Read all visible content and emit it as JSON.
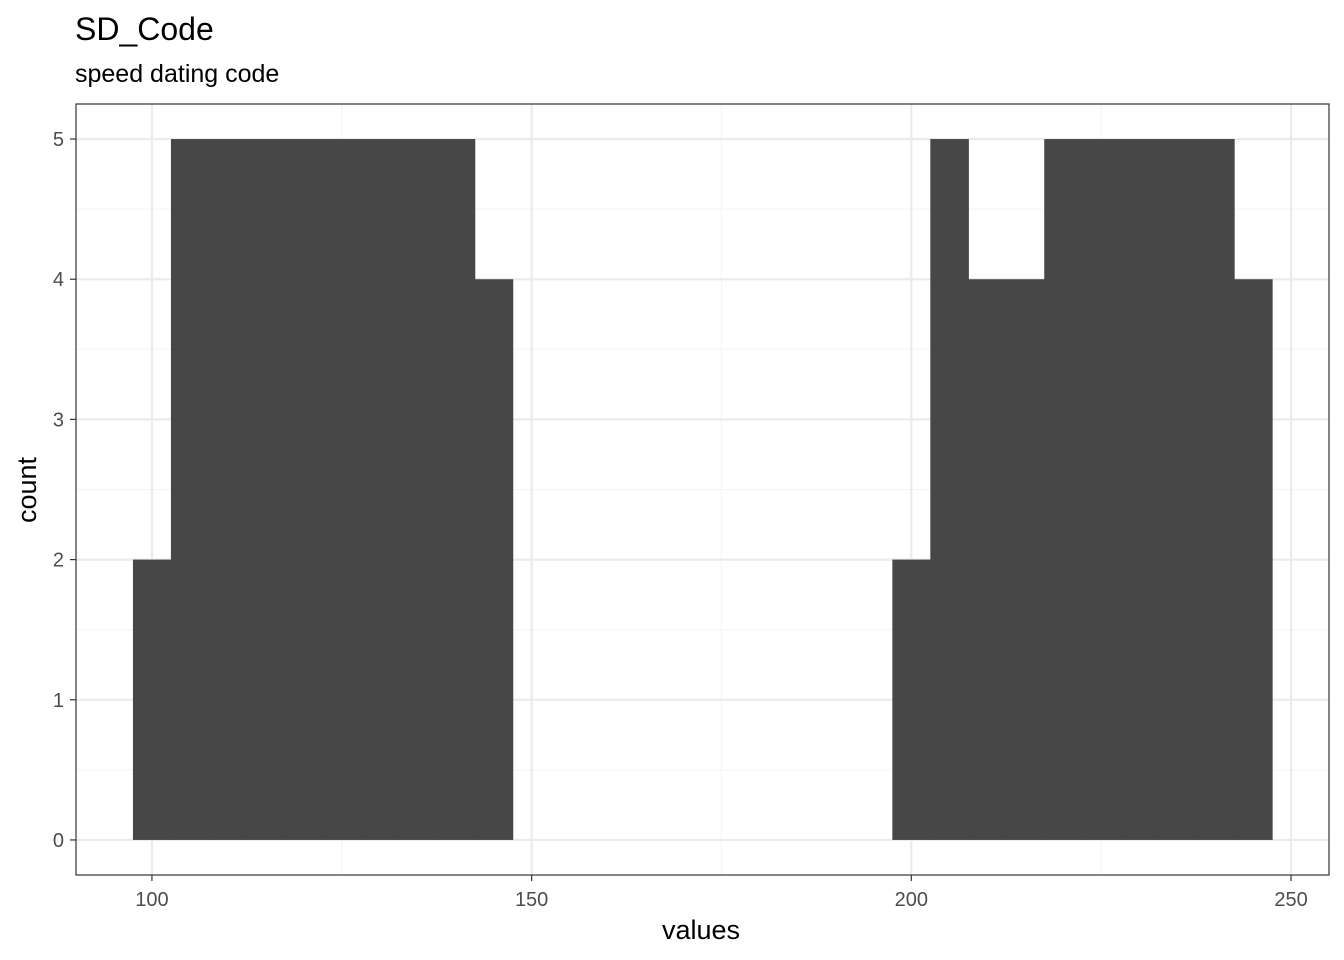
{
  "chart_data": {
    "type": "bar",
    "title": "SD_Code",
    "subtitle": "speed dating code",
    "xlabel": "values",
    "ylabel": "count",
    "xlim": [
      90,
      255
    ],
    "ylim": [
      -0.25,
      5.25
    ],
    "x_ticks": [
      100,
      150,
      200,
      250
    ],
    "x_minor_ticks": [
      125,
      175,
      225
    ],
    "y_ticks": [
      0,
      1,
      2,
      3,
      4,
      5
    ],
    "y_minor_ticks": [
      0.5,
      1.5,
      2.5,
      3.5,
      4.5
    ],
    "x_tick_labels": [
      "100",
      "150",
      "200",
      "250"
    ],
    "y_tick_labels": [
      "0",
      "1",
      "2",
      "3",
      "4",
      "5"
    ],
    "grid": true,
    "bin_width": 5,
    "bins": [
      {
        "x": 100,
        "count": 2
      },
      {
        "x": 105,
        "count": 5
      },
      {
        "x": 110,
        "count": 5
      },
      {
        "x": 115,
        "count": 5
      },
      {
        "x": 120,
        "count": 5
      },
      {
        "x": 125,
        "count": 5
      },
      {
        "x": 130,
        "count": 5
      },
      {
        "x": 135,
        "count": 5
      },
      {
        "x": 140,
        "count": 5
      },
      {
        "x": 145,
        "count": 4
      },
      {
        "x": 200,
        "count": 2
      },
      {
        "x": 205,
        "count": 5
      },
      {
        "x": 210,
        "count": 4
      },
      {
        "x": 215,
        "count": 4
      },
      {
        "x": 220,
        "count": 5
      },
      {
        "x": 225,
        "count": 5
      },
      {
        "x": 230,
        "count": 5
      },
      {
        "x": 235,
        "count": 5
      },
      {
        "x": 240,
        "count": 5
      },
      {
        "x": 245,
        "count": 4
      }
    ],
    "colors": {
      "bar": "#474747",
      "grid_major": "#ebebeb",
      "grid_minor": "#f5f5f5",
      "panel_border": "#333333",
      "tick_label": "#4d4d4d"
    }
  }
}
